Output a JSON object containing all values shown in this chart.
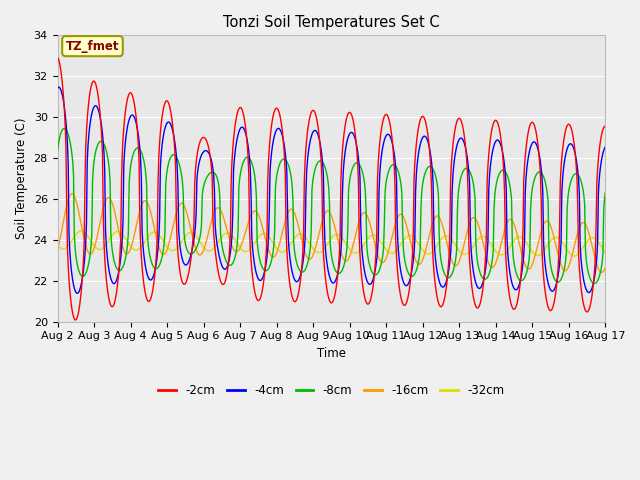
{
  "title": "Tonzi Soil Temperatures Set C",
  "xlabel": "Time",
  "ylabel": "Soil Temperature (C)",
  "ylim": [
    20,
    34
  ],
  "annotation": "TZ_fmet",
  "legend_labels": [
    "-2cm",
    "-4cm",
    "-8cm",
    "-16cm",
    "-32cm"
  ],
  "line_colors": [
    "#ff0000",
    "#0000ff",
    "#00bb00",
    "#ff9900",
    "#dddd00"
  ],
  "fig_bg": "#f0f0f0",
  "ax_bg": "#e8e8e8",
  "n_days": 15,
  "samples_per_day": 48,
  "start_day": 2
}
